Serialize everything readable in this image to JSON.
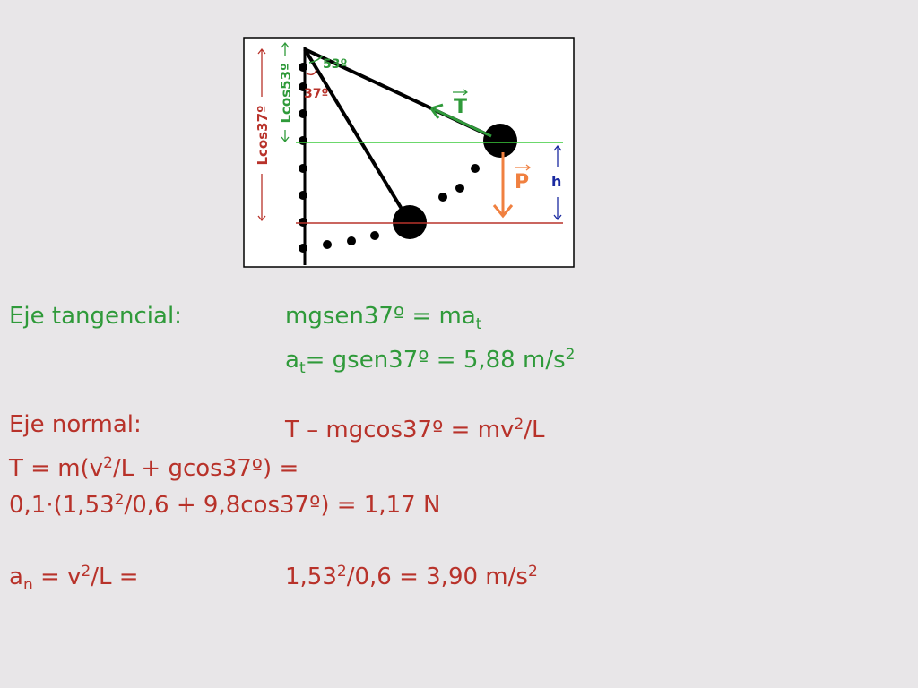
{
  "diagram": {
    "angle_top": "53º",
    "angle_bottom": "37º",
    "tension": "T",
    "weight": "P",
    "height": "h",
    "length_cos37": "Lcos37º",
    "length_cos53": "Lcos53º"
  },
  "equations": [
    {
      "label": [
        {
          "text": "Eje tangencial:"
        }
      ],
      "parts": [
        {
          "text": "mgsen37º = ma"
        },
        {
          "sub": "t"
        }
      ]
    },
    {
      "parts": [
        {
          "text": "a"
        },
        {
          "sub": "t"
        },
        {
          "text": "= gsen37º = 5,88 m/s"
        },
        {
          "sup": "2"
        }
      ]
    },
    {
      "label": [
        {
          "text": "Eje normal:"
        }
      ],
      "parts": [
        {
          "text": "T – mgcos37º = mv"
        },
        {
          "sup": "2"
        },
        {
          "text": "/L"
        }
      ]
    },
    {
      "parts": [
        {
          "text": "T = m(v"
        },
        {
          "sup": "2"
        },
        {
          "text": "/L + gcos37º) ="
        }
      ]
    },
    {
      "parts": [
        {
          "text": "0,1·(1,53"
        },
        {
          "sup": "2"
        },
        {
          "text": "/0,6 + 9,8cos37º) = 1,17 N"
        }
      ]
    },
    {
      "label": [
        {
          "text": "a"
        },
        {
          "sub": "n"
        },
        {
          "text": " = v"
        },
        {
          "sup": "2"
        },
        {
          "text": "/L ="
        }
      ],
      "parts": [
        {
          "text": "1,53"
        },
        {
          "sup": "2"
        },
        {
          "text": "/0,6 = 3,90 m/s"
        },
        {
          "sup": "2"
        }
      ]
    }
  ]
}
